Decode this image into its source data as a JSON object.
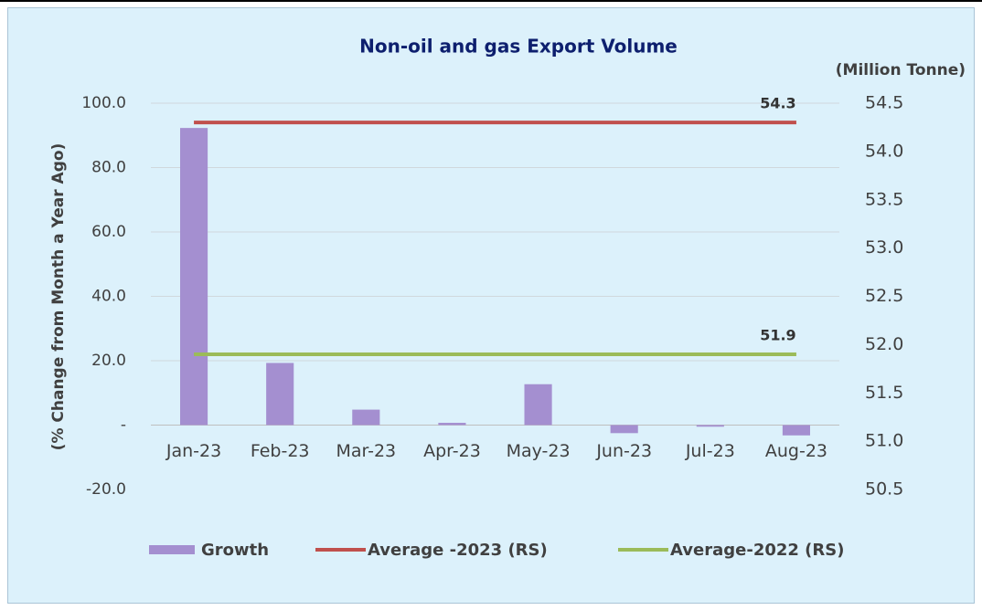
{
  "chart_data": {
    "type": "bar",
    "title": "Non-oil and gas Export Volume",
    "y_label": "(% Change from Month a Year Ago)",
    "y2_label": "(Million Tonne)",
    "categories": [
      "Jan-23",
      "Feb-23",
      "Mar-23",
      "Apr-23",
      "May-23",
      "Jun-23",
      "Jul-23",
      "Aug-23"
    ],
    "series": [
      {
        "name": "Growth",
        "color": "#a48fd0",
        "values": [
          92.3,
          19.3,
          4.8,
          0.7,
          12.7,
          -2.5,
          -0.5,
          -3.2
        ]
      },
      {
        "name": "Average -2023 (RS)",
        "color": "#c0504d",
        "axis": "y2",
        "values": [
          54.3,
          54.3,
          54.3,
          54.3,
          54.3,
          54.3,
          54.3,
          54.3
        ]
      },
      {
        "name": "Average-2022 (RS)",
        "color": "#9bbb59",
        "axis": "y2",
        "values": [
          51.9,
          51.9,
          51.9,
          51.9,
          51.9,
          51.9,
          51.9,
          51.9
        ]
      }
    ],
    "ylim": [
      -20,
      100
    ],
    "yticks": [
      {
        "value": -20,
        "label": "-20.0"
      },
      {
        "value": 0,
        "label": "-"
      },
      {
        "value": 20,
        "label": "20.0"
      },
      {
        "value": 40,
        "label": "40.0"
      },
      {
        "value": 60,
        "label": "60.0"
      },
      {
        "value": 80,
        "label": "80.0"
      },
      {
        "value": 100,
        "label": "100.0"
      }
    ],
    "y2lim": [
      50.5,
      54.5
    ],
    "y2ticks": [
      50.5,
      {
        "value": 51,
        "label": "51.0"
      },
      51.5,
      {
        "value": 52,
        "label": "52.0"
      },
      52.5,
      {
        "value": 53,
        "label": "53.0"
      },
      53.5,
      {
        "value": 54,
        "label": "54.0"
      },
      54.5
    ],
    "grid": true,
    "legend": "bottom"
  }
}
